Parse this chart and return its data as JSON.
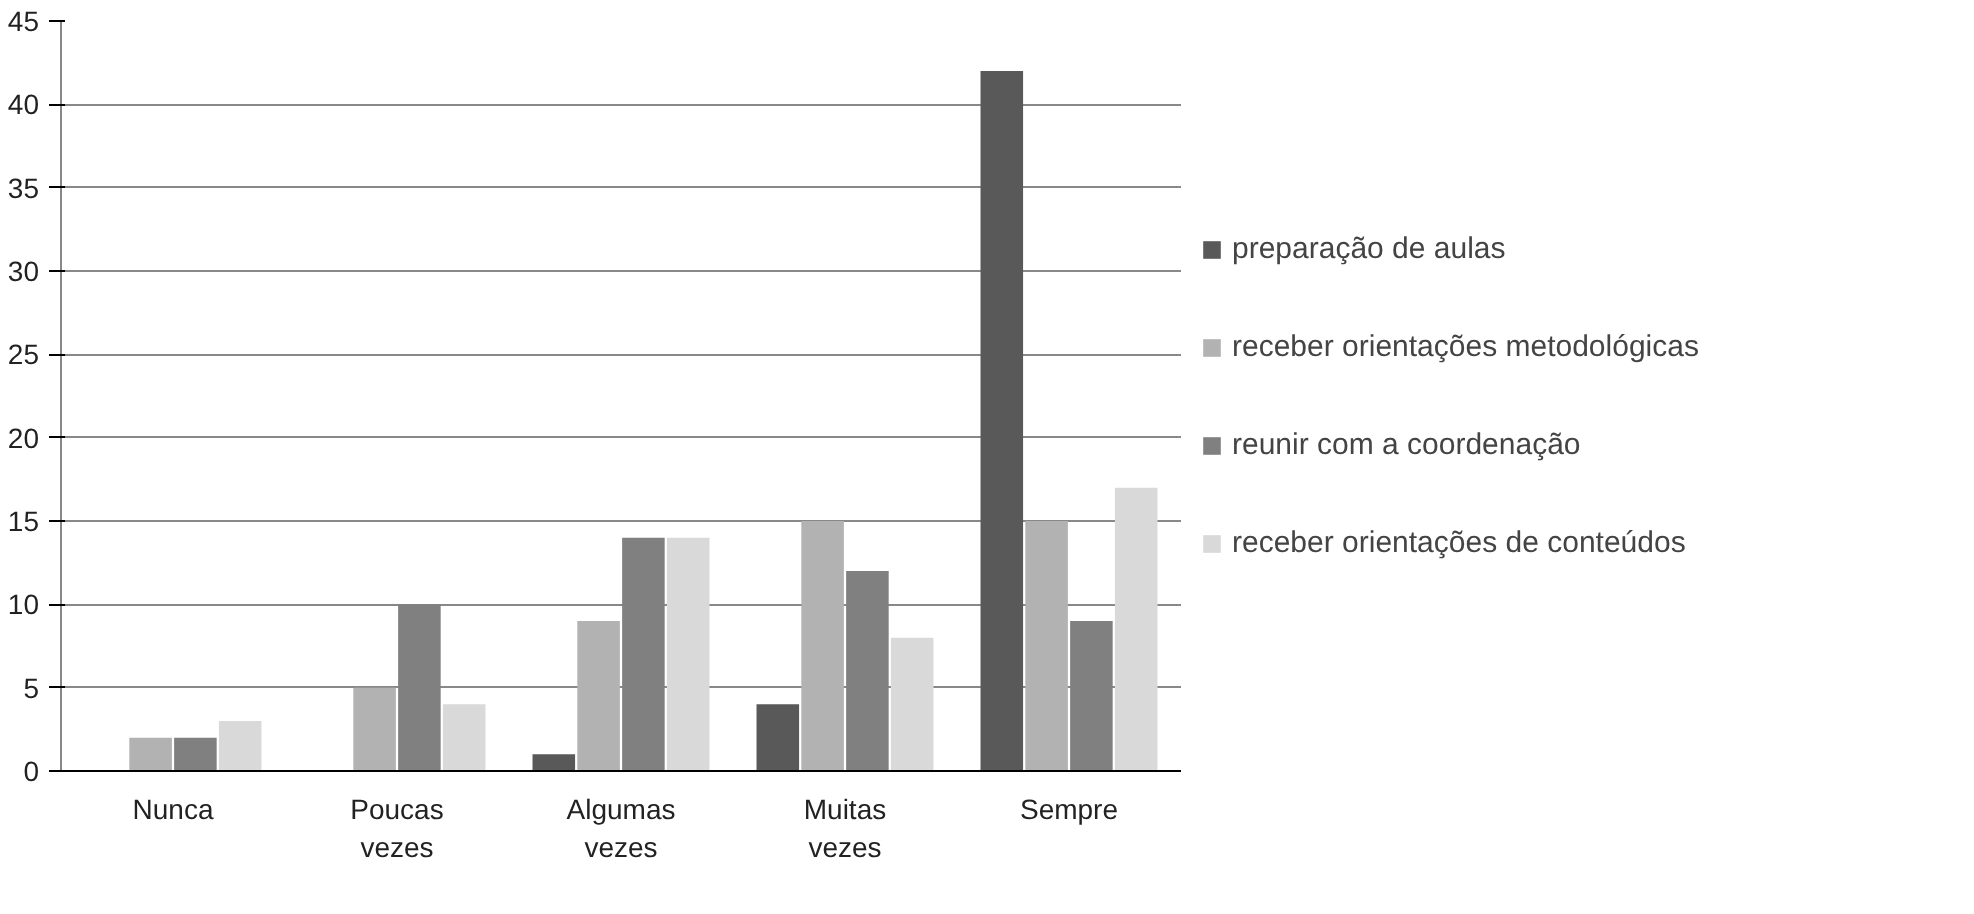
{
  "chart_data": {
    "type": "bar",
    "categories": [
      "Nunca",
      "Poucas vezes",
      "Algumas vezes",
      "Muitas vezes",
      "Sempre"
    ],
    "series": [
      {
        "name": "preparação de aulas",
        "color": "#595959",
        "values": [
          0,
          0,
          1,
          4,
          42
        ]
      },
      {
        "name": "receber orientações metodológicas",
        "color": "#b2b2b2",
        "values": [
          2,
          5,
          9,
          15,
          15
        ]
      },
      {
        "name": "reunir com a coordenação",
        "color": "#808080",
        "values": [
          2,
          10,
          14,
          12,
          9
        ]
      },
      {
        "name": "receber orientações de conteúdos",
        "color": "#d9d9d9",
        "values": [
          3,
          4,
          14,
          8,
          17
        ]
      }
    ],
    "ylim": [
      0,
      45
    ],
    "yticks": [
      0,
      5,
      10,
      15,
      20,
      25,
      30,
      35,
      40,
      45
    ],
    "grid": "y",
    "legend": "right"
  }
}
